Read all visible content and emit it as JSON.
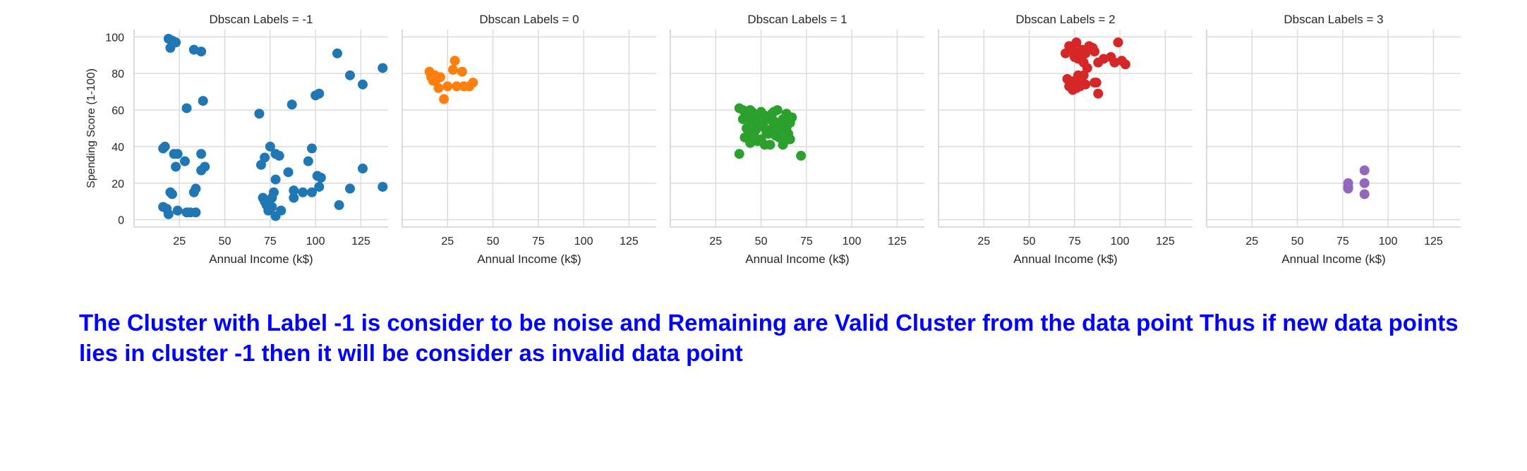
{
  "chart_data": {
    "type": "scatter",
    "layout": "facet-grid",
    "xlabel": "Annual Income (k$)",
    "ylabel": "Spending Score (1-100)",
    "xlim": [
      0,
      140
    ],
    "ylim": [
      -4,
      104
    ],
    "xticks": [
      25,
      50,
      75,
      100,
      125
    ],
    "yticks": [
      0,
      20,
      40,
      60,
      80,
      100
    ],
    "grid": true,
    "panels": [
      {
        "title": "Dbscan Labels = -1",
        "color": "#1f77b4",
        "points": [
          [
            19,
            99
          ],
          [
            20,
            94
          ],
          [
            21,
            98
          ],
          [
            23,
            97
          ],
          [
            33,
            93
          ],
          [
            37,
            92
          ],
          [
            38,
            65
          ],
          [
            29,
            61
          ],
          [
            16,
            39
          ],
          [
            17,
            40
          ],
          [
            22,
            36
          ],
          [
            24,
            36
          ],
          [
            28,
            32
          ],
          [
            23,
            29
          ],
          [
            37,
            36
          ],
          [
            39,
            29
          ],
          [
            37,
            27
          ],
          [
            34,
            17
          ],
          [
            33,
            15
          ],
          [
            20,
            15
          ],
          [
            21,
            14
          ],
          [
            16,
            7
          ],
          [
            18,
            6
          ],
          [
            19,
            3
          ],
          [
            24,
            5
          ],
          [
            29,
            4
          ],
          [
            31,
            4
          ],
          [
            34,
            4
          ],
          [
            69,
            58
          ],
          [
            87,
            63
          ],
          [
            100,
            68
          ],
          [
            102,
            69
          ],
          [
            112,
            91
          ],
          [
            119,
            79
          ],
          [
            126,
            74
          ],
          [
            137,
            83
          ],
          [
            70,
            30
          ],
          [
            72,
            34
          ],
          [
            75,
            40
          ],
          [
            78,
            36
          ],
          [
            80,
            35
          ],
          [
            96,
            32
          ],
          [
            98,
            39
          ],
          [
            101,
            24
          ],
          [
            103,
            23
          ],
          [
            126,
            28
          ],
          [
            78,
            22
          ],
          [
            85,
            26
          ],
          [
            88,
            16
          ],
          [
            88,
            12
          ],
          [
            93,
            15
          ],
          [
            98,
            15
          ],
          [
            102,
            18
          ],
          [
            119,
            17
          ],
          [
            113,
            8
          ],
          [
            137,
            18
          ],
          [
            71,
            12
          ],
          [
            72,
            10
          ],
          [
            73,
            8
          ],
          [
            74,
            5
          ],
          [
            76,
            7
          ],
          [
            76,
            12
          ],
          [
            77,
            15
          ],
          [
            78,
            2
          ],
          [
            81,
            5
          ]
        ]
      },
      {
        "title": "Dbscan Labels = 0",
        "color": "#ff7f0e",
        "points": [
          [
            15,
            81
          ],
          [
            16,
            78
          ],
          [
            17,
            76
          ],
          [
            18,
            79
          ],
          [
            19,
            77
          ],
          [
            20,
            72
          ],
          [
            21,
            78
          ],
          [
            25,
            73
          ],
          [
            28,
            82
          ],
          [
            29,
            87
          ],
          [
            30,
            73
          ],
          [
            33,
            81
          ],
          [
            34,
            73
          ],
          [
            37,
            73
          ],
          [
            39,
            75
          ],
          [
            23,
            66
          ]
        ]
      },
      {
        "title": "Dbscan Labels = 1",
        "color": "#2ca02c",
        "points": [
          [
            38,
            61
          ],
          [
            40,
            60
          ],
          [
            42,
            58
          ],
          [
            44,
            60
          ],
          [
            38,
            36
          ],
          [
            40,
            55
          ],
          [
            42,
            50
          ],
          [
            43,
            46
          ],
          [
            44,
            42
          ],
          [
            45,
            55
          ],
          [
            46,
            53
          ],
          [
            47,
            49
          ],
          [
            48,
            56
          ],
          [
            49,
            51
          ],
          [
            50,
            44
          ],
          [
            51,
            52
          ],
          [
            52,
            57
          ],
          [
            53,
            48
          ],
          [
            54,
            55
          ],
          [
            55,
            41
          ],
          [
            56,
            50
          ],
          [
            57,
            54
          ],
          [
            58,
            46
          ],
          [
            59,
            60
          ],
          [
            60,
            52
          ],
          [
            61,
            49
          ],
          [
            62,
            55
          ],
          [
            63,
            43
          ],
          [
            64,
            58
          ],
          [
            65,
            47
          ],
          [
            66,
            53
          ],
          [
            67,
            56
          ],
          [
            72,
            35
          ],
          [
            43,
            55
          ],
          [
            46,
            47
          ],
          [
            48,
            43
          ],
          [
            50,
            59
          ],
          [
            52,
            41
          ],
          [
            54,
            47
          ],
          [
            57,
            59
          ],
          [
            60,
            45
          ],
          [
            62,
            41
          ],
          [
            64,
            50
          ],
          [
            66,
            44
          ],
          [
            45,
            59
          ],
          [
            56,
            58
          ],
          [
            41,
            45
          ],
          [
            58,
            53
          ]
        ]
      },
      {
        "title": "Dbscan Labels = 2",
        "color": "#d62728",
        "points": [
          [
            70,
            91
          ],
          [
            72,
            95
          ],
          [
            74,
            93
          ],
          [
            75,
            89
          ],
          [
            76,
            97
          ],
          [
            77,
            88
          ],
          [
            78,
            90
          ],
          [
            79,
            93
          ],
          [
            80,
            86
          ],
          [
            81,
            91
          ],
          [
            82,
            83
          ],
          [
            83,
            95
          ],
          [
            85,
            94
          ],
          [
            86,
            92
          ],
          [
            88,
            86
          ],
          [
            91,
            88
          ],
          [
            95,
            89
          ],
          [
            97,
            86
          ],
          [
            99,
            97
          ],
          [
            101,
            87
          ],
          [
            103,
            85
          ],
          [
            71,
            77
          ],
          [
            72,
            73
          ],
          [
            73,
            75
          ],
          [
            74,
            71
          ],
          [
            75,
            76
          ],
          [
            76,
            72
          ],
          [
            77,
            79
          ],
          [
            78,
            73
          ],
          [
            79,
            74
          ],
          [
            80,
            79
          ],
          [
            81,
            74
          ],
          [
            86,
            75
          ],
          [
            87,
            75
          ],
          [
            88,
            69
          ]
        ]
      },
      {
        "title": "Dbscan Labels = 3",
        "color": "#9467bd",
        "points": [
          [
            78,
            20
          ],
          [
            78,
            17
          ],
          [
            78,
            18
          ],
          [
            87,
            27
          ],
          [
            87,
            20
          ],
          [
            87,
            14
          ]
        ]
      }
    ]
  },
  "note": {
    "text": "The Cluster with Label -1 is consider to be noise and Remaining are Valid Cluster from the data point Thus if new data points lies in cluster -1 then it will be consider as invalid data point",
    "color": "#0000ff"
  }
}
